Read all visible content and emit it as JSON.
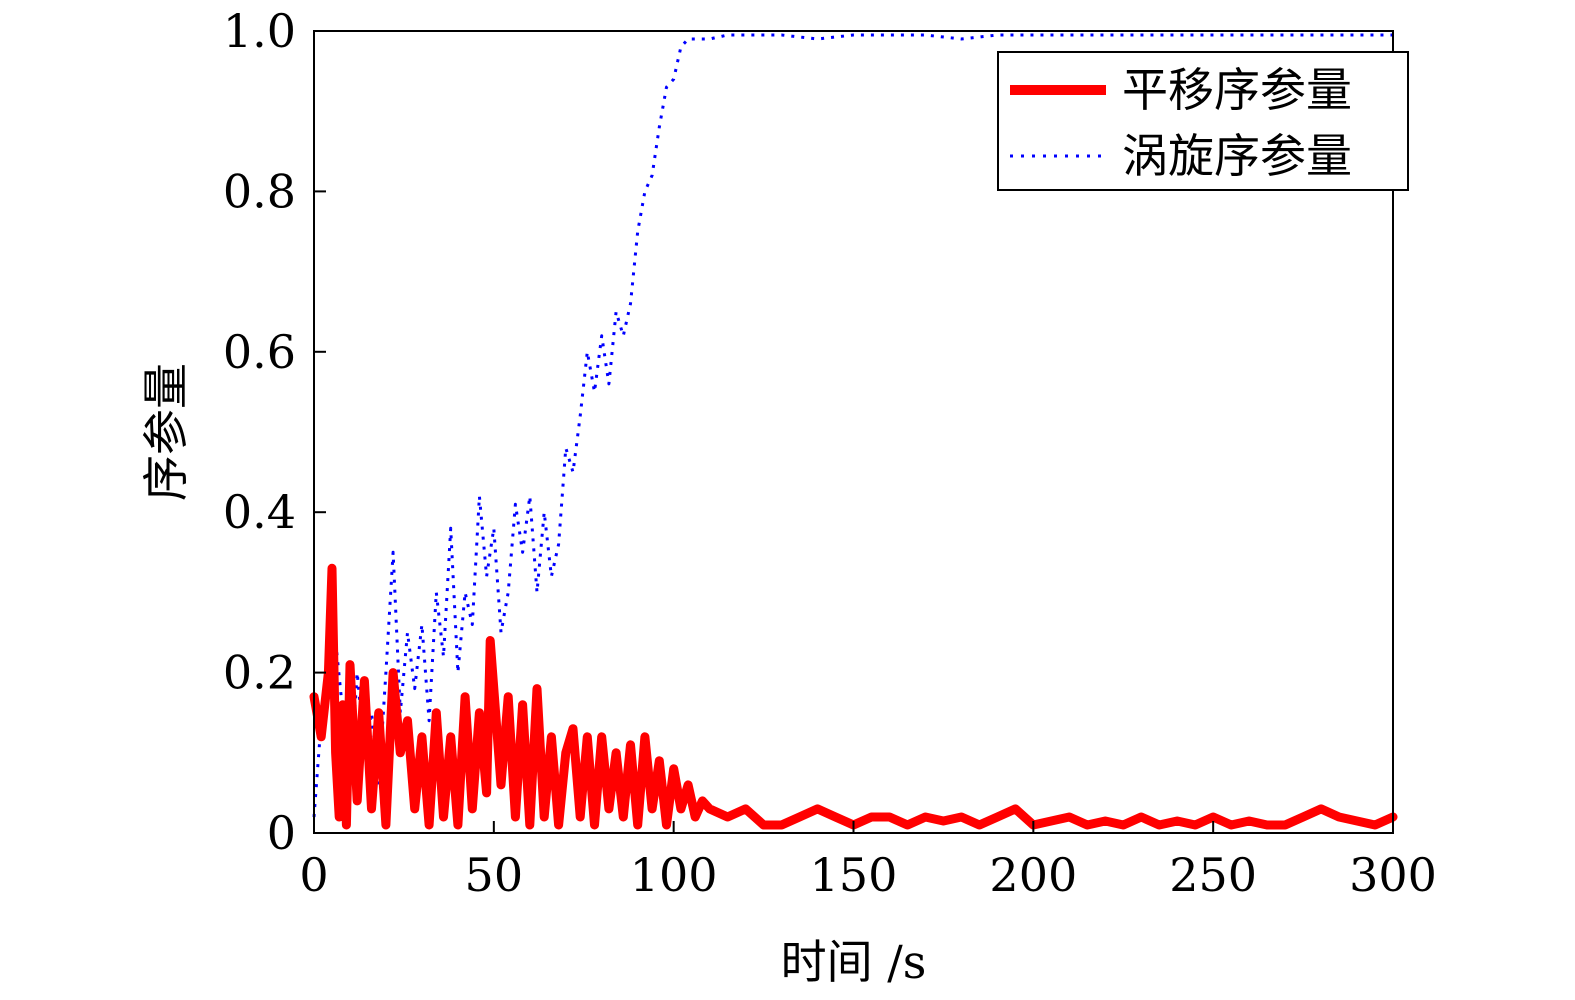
{
  "chart_data": {
    "type": "line",
    "title": "",
    "xlabel": "时间 /s",
    "ylabel": "序参量",
    "xlim": [
      0,
      300
    ],
    "ylim": [
      0,
      1.0
    ],
    "x_ticks": [
      0,
      50,
      100,
      150,
      200,
      250,
      300
    ],
    "x_tick_labels": [
      "0",
      "50",
      "100",
      "150",
      "200",
      "250",
      "300"
    ],
    "y_ticks": [
      0,
      0.2,
      0.4,
      0.6,
      0.8,
      1.0
    ],
    "y_tick_labels": [
      "0",
      "0.2",
      "0.4",
      "0.6",
      "0.8",
      "1.0"
    ],
    "grid": false,
    "legend_position": "top-right",
    "series": [
      {
        "name": "平移序参量",
        "color": "#ff0000",
        "style": "solid",
        "x": [
          0,
          2,
          4,
          5,
          6,
          7,
          8,
          9,
          10,
          12,
          14,
          16,
          18,
          20,
          22,
          24,
          26,
          28,
          30,
          32,
          34,
          36,
          38,
          40,
          42,
          44,
          46,
          48,
          49,
          50,
          52,
          54,
          56,
          58,
          60,
          62,
          64,
          66,
          68,
          70,
          72,
          74,
          76,
          78,
          80,
          82,
          84,
          86,
          88,
          90,
          92,
          94,
          96,
          98,
          100,
          102,
          104,
          106,
          108,
          110,
          115,
          120,
          125,
          130,
          135,
          140,
          145,
          150,
          155,
          160,
          165,
          170,
          175,
          180,
          185,
          190,
          195,
          200,
          205,
          210,
          215,
          220,
          225,
          230,
          235,
          240,
          245,
          250,
          255,
          260,
          265,
          270,
          275,
          280,
          285,
          290,
          295,
          300
        ],
        "y": [
          0.17,
          0.12,
          0.2,
          0.33,
          0.1,
          0.02,
          0.16,
          0.01,
          0.21,
          0.04,
          0.19,
          0.03,
          0.15,
          0.01,
          0.2,
          0.1,
          0.14,
          0.03,
          0.12,
          0.01,
          0.15,
          0.02,
          0.12,
          0.01,
          0.17,
          0.03,
          0.15,
          0.05,
          0.24,
          0.18,
          0.06,
          0.17,
          0.02,
          0.16,
          0.01,
          0.18,
          0.02,
          0.12,
          0.01,
          0.1,
          0.13,
          0.02,
          0.12,
          0.01,
          0.12,
          0.03,
          0.1,
          0.02,
          0.11,
          0.01,
          0.12,
          0.03,
          0.09,
          0.01,
          0.08,
          0.03,
          0.06,
          0.02,
          0.04,
          0.03,
          0.02,
          0.03,
          0.01,
          0.01,
          0.02,
          0.03,
          0.02,
          0.01,
          0.02,
          0.02,
          0.01,
          0.02,
          0.015,
          0.02,
          0.01,
          0.02,
          0.03,
          0.01,
          0.015,
          0.02,
          0.01,
          0.015,
          0.01,
          0.02,
          0.01,
          0.015,
          0.01,
          0.02,
          0.01,
          0.015,
          0.01,
          0.01,
          0.02,
          0.03,
          0.02,
          0.015,
          0.01,
          0.02
        ]
      },
      {
        "name": "涡旋序参量",
        "color": "#0000ff",
        "style": "dotted",
        "x": [
          0,
          2,
          4,
          6,
          8,
          10,
          12,
          14,
          16,
          18,
          20,
          22,
          24,
          26,
          28,
          30,
          32,
          34,
          36,
          38,
          40,
          42,
          44,
          46,
          48,
          50,
          52,
          54,
          56,
          58,
          60,
          62,
          64,
          66,
          68,
          70,
          72,
          74,
          76,
          78,
          80,
          82,
          84,
          86,
          88,
          90,
          92,
          94,
          96,
          98,
          100,
          102,
          104,
          106,
          108,
          110,
          115,
          120,
          130,
          140,
          150,
          160,
          170,
          180,
          190,
          200,
          210,
          220,
          230,
          240,
          250,
          260,
          270,
          280,
          290,
          300
        ],
        "y": [
          0.02,
          0.14,
          0.2,
          0.24,
          0.15,
          0.06,
          0.2,
          0.1,
          0.15,
          0.06,
          0.2,
          0.35,
          0.15,
          0.25,
          0.18,
          0.26,
          0.14,
          0.3,
          0.22,
          0.38,
          0.2,
          0.3,
          0.26,
          0.42,
          0.32,
          0.38,
          0.25,
          0.3,
          0.41,
          0.35,
          0.42,
          0.3,
          0.4,
          0.32,
          0.36,
          0.48,
          0.45,
          0.52,
          0.6,
          0.55,
          0.62,
          0.56,
          0.65,
          0.62,
          0.66,
          0.75,
          0.8,
          0.82,
          0.88,
          0.93,
          0.94,
          0.98,
          0.99,
          0.99,
          0.99,
          0.99,
          0.995,
          0.995,
          0.995,
          0.99,
          0.995,
          0.995,
          0.995,
          0.99,
          0.995,
          0.995,
          0.995,
          0.995,
          0.995,
          0.995,
          0.995,
          0.995,
          0.995,
          0.995,
          0.995,
          0.995
        ]
      }
    ]
  }
}
